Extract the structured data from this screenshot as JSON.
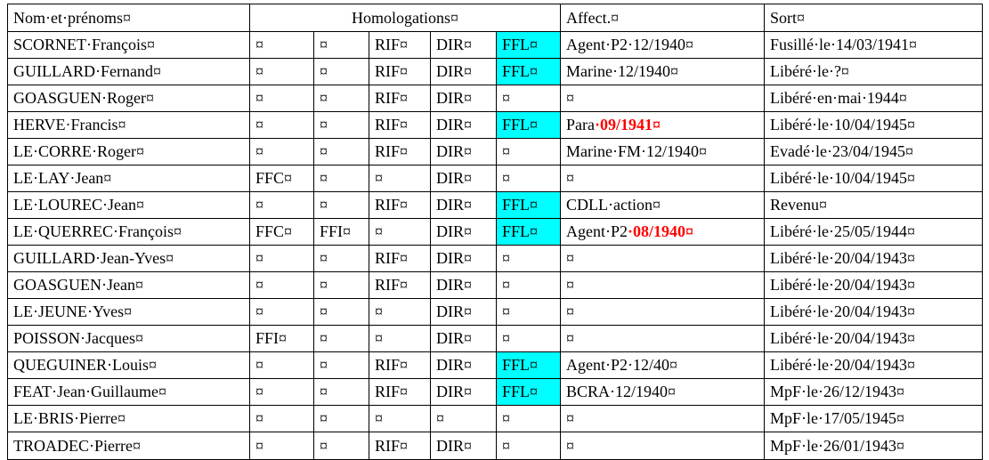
{
  "marks": {
    "pilcrow": "¤"
  },
  "header": {
    "nom": "Nom·et·prénoms¤",
    "homologations": "Homologations¤",
    "affect": "Affect.¤",
    "sort": "Sort¤"
  },
  "rows": [
    {
      "nom": "SCORNET·François¤",
      "h1": "¤",
      "h2": "¤",
      "h3": "RIF¤",
      "h4": "DIR¤",
      "h5": "FFL¤",
      "affect": "Agent·P2·12/1940¤",
      "affect_red": "",
      "sort": "Fusillé·le·14/03/1941¤"
    },
    {
      "nom": "GUILLARD·Fernand¤",
      "h1": "¤",
      "h2": "¤",
      "h3": "RIF¤",
      "h4": "DIR¤",
      "h5": "FFL¤",
      "affect": "Marine·12/1940¤",
      "affect_red": "",
      "sort": "Libéré·le·?¤"
    },
    {
      "nom": "GOASGUEN·Roger¤",
      "h1": "¤",
      "h2": "¤",
      "h3": "RIF¤",
      "h4": "DIR¤",
      "h5": "¤",
      "affect": "¤",
      "affect_red": "",
      "sort": "Libéré·en·mai·1944¤"
    },
    {
      "nom": "HERVE·Francis¤",
      "h1": "¤",
      "h2": "¤",
      "h3": "RIF¤",
      "h4": "DIR¤",
      "h5": "FFL¤",
      "affect": "Para",
      "affect_red": "·09/1941¤",
      "sort": "Libéré·le·10/04/1945¤"
    },
    {
      "nom": "LE·CORRE·Roger¤",
      "h1": "¤",
      "h2": "¤",
      "h3": "RIF¤",
      "h4": "DIR¤",
      "h5": "¤",
      "affect": "Marine·FM·12/1940¤",
      "affect_red": "",
      "sort": "Evadé·le·23/04/1945¤"
    },
    {
      "nom": "LE·LAY·Jean¤",
      "h1": "FFC¤",
      "h2": "¤",
      "h3": "¤",
      "h4": "DIR¤",
      "h5": "¤",
      "affect": "¤",
      "affect_red": "",
      "sort": "Libéré·le·10/04/1945¤"
    },
    {
      "nom": "LE·LOUREC·Jean¤",
      "h1": "¤",
      "h2": "¤",
      "h3": "RIF¤",
      "h4": "DIR¤",
      "h5": "FFL¤",
      "affect": "CDLL·action¤",
      "affect_red": "",
      "sort": "Revenu¤"
    },
    {
      "nom": "LE·QUERREC·François¤",
      "h1": "FFC¤",
      "h2": "FFI¤",
      "h3": "¤",
      "h4": "DIR¤",
      "h5": "FFL¤",
      "affect": "Agent·P2",
      "affect_red": "·08/1940¤",
      "sort": "Libéré·le·25/05/1944¤"
    },
    {
      "nom": "GUILLARD·Jean-Yves¤",
      "h1": "¤",
      "h2": "¤",
      "h3": "RIF¤",
      "h4": "DIR¤",
      "h5": "¤",
      "affect": "¤",
      "affect_red": "",
      "sort": "Libéré·le·20/04/1943¤"
    },
    {
      "nom": "GOASGUEN·Jean¤",
      "h1": "¤",
      "h2": "¤",
      "h3": "RIF¤",
      "h4": "DIR¤",
      "h5": "¤",
      "affect": "¤",
      "affect_red": "",
      "sort": "Libéré·le·20/04/1943¤"
    },
    {
      "nom": "LE·JEUNE·Yves¤",
      "h1": "¤",
      "h2": "¤",
      "h3": "¤",
      "h4": "DIR¤",
      "h5": "¤",
      "affect": "¤",
      "affect_red": "",
      "sort": "Libéré·le·20/04/1943¤"
    },
    {
      "nom": "POISSON·Jacques¤",
      "h1": "FFI¤",
      "h2": "¤",
      "h3": "¤",
      "h4": "DIR¤",
      "h5": "¤",
      "affect": "¤",
      "affect_red": "",
      "sort": "Libéré·le·20/04/1943¤"
    },
    {
      "nom": "QUEGUINER·Louis¤",
      "h1": "¤",
      "h2": "¤",
      "h3": "RIF¤",
      "h4": "DIR¤",
      "h5": "FFL¤",
      "affect": "Agent·P2·12/40¤",
      "affect_red": "",
      "sort": "Libéré·le·20/04/1943¤"
    },
    {
      "nom": "FEAT·Jean·Guillaume¤",
      "h1": "¤",
      "h2": "¤",
      "h3": "RIF¤",
      "h4": "DIR¤",
      "h5": "FFL¤",
      "affect": "BCRA·12/1940¤",
      "affect_red": "",
      "sort": "MpF·le·26/12/1943¤"
    },
    {
      "nom": "LE·BRIS·Pierre¤",
      "h1": "¤",
      "h2": "¤",
      "h3": "¤",
      "h4": "¤",
      "h5": "¤",
      "affect": "¤",
      "affect_red": "",
      "sort": "MpF·le·17/05/1945¤"
    },
    {
      "nom": "TROADEC·Pierre¤",
      "h1": "¤",
      "h2": "¤",
      "h3": "RIF¤",
      "h4": "DIR¤",
      "h5": "¤",
      "affect": "¤",
      "affect_red": "",
      "sort": "MpF·le·26/01/1943¤"
    }
  ],
  "colors": {
    "ffl_highlight": "#00ffff",
    "date_red": "#ff0000"
  }
}
